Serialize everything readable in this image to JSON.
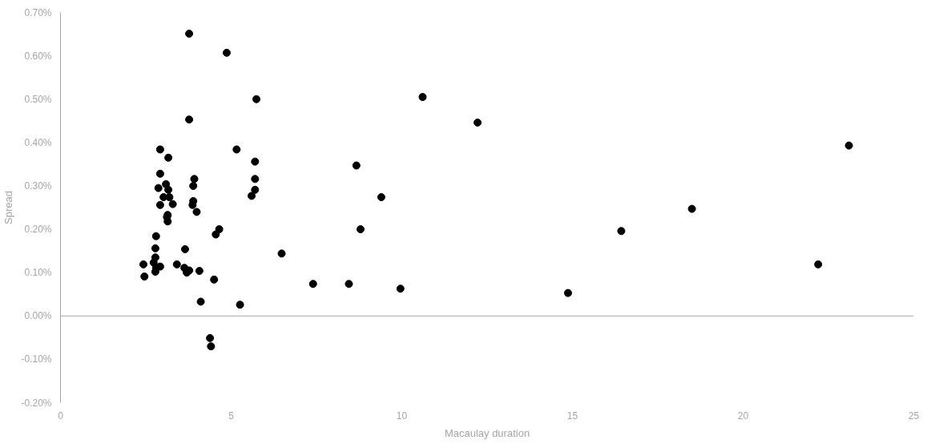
{
  "chart_data": {
    "type": "scatter",
    "xlabel": "Macaulay duration",
    "ylabel": "Spread",
    "xlim": [
      0,
      25
    ],
    "xticks": [
      0,
      5,
      10,
      15,
      20,
      25
    ],
    "ylim": [
      -0.2,
      0.7
    ],
    "yticks": [
      {
        "value": -0.2,
        "label": "-0.20%"
      },
      {
        "value": -0.1,
        "label": "-0.10%"
      },
      {
        "value": 0,
        "label": "0.00%"
      },
      {
        "value": 0.1,
        "label": "0.10%"
      },
      {
        "value": 0.2,
        "label": "0.20%"
      },
      {
        "value": 0.3,
        "label": "0.30%"
      },
      {
        "value": 0.4,
        "label": "0.40%"
      },
      {
        "value": 0.5,
        "label": "0.50%"
      },
      {
        "value": 0.6,
        "label": "0.60%"
      },
      {
        "value": 0.7,
        "label": "0.70%"
      }
    ],
    "grid": false,
    "marker": "circle",
    "ref_lines": [
      {
        "axis": "y",
        "value": 0,
        "color": "#a6a6a6"
      }
    ],
    "series": [
      {
        "color": "#000000",
        "x": [
          3.77,
          4.87,
          5.74,
          10.61,
          12.22,
          3.77,
          23.1,
          2.92,
          3.16,
          5.16,
          5.7,
          8.67,
          2.92,
          3.92,
          5.7,
          3.89,
          3.09,
          2.87,
          3.16,
          5.7,
          3.02,
          3.19,
          5.6,
          9.4,
          3.89,
          2.92,
          3.29,
          3.87,
          3.14,
          3.99,
          3.14,
          3.12,
          4.65,
          4.55,
          8.79,
          16.43,
          18.5,
          2.8,
          3.65,
          2.78,
          6.48,
          2.78,
          2.43,
          2.73,
          2.8,
          2.92,
          2.78,
          3.41,
          3.63,
          3.7,
          3.77,
          4.07,
          2.46,
          4.5,
          22.2,
          7.4,
          8.45,
          9.96,
          14.87,
          4.11,
          5.26,
          4.38,
          4.41
        ],
        "values": [
          0.651,
          0.607,
          0.5,
          0.505,
          0.446,
          0.453,
          0.393,
          0.384,
          0.365,
          0.384,
          0.356,
          0.347,
          0.328,
          0.316,
          0.316,
          0.3,
          0.304,
          0.295,
          0.291,
          0.291,
          0.274,
          0.274,
          0.277,
          0.274,
          0.265,
          0.256,
          0.258,
          0.256,
          0.233,
          0.24,
          0.218,
          0.228,
          0.2,
          0.188,
          0.2,
          0.196,
          0.247,
          0.184,
          0.154,
          0.156,
          0.144,
          0.135,
          0.119,
          0.123,
          0.111,
          0.114,
          0.102,
          0.119,
          0.111,
          0.1,
          0.105,
          0.104,
          0.091,
          0.084,
          0.119,
          0.074,
          0.074,
          0.063,
          0.053,
          0.033,
          0.026,
          -0.051,
          -0.07
        ]
      }
    ]
  }
}
